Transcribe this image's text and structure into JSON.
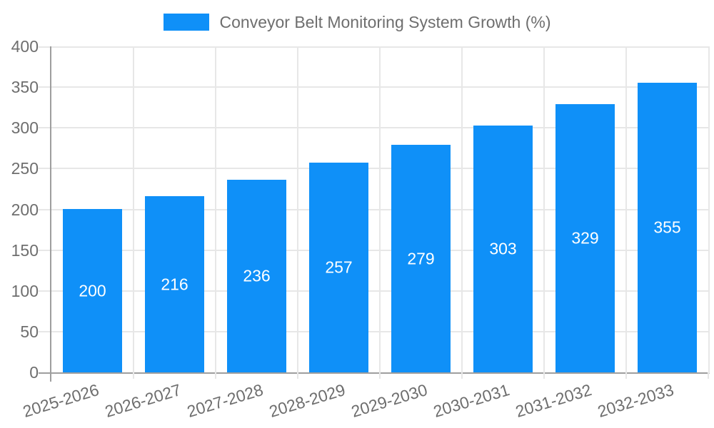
{
  "chart_data": {
    "type": "bar",
    "title": "Conveyor Belt Monitoring System Growth (%)",
    "categories": [
      "2025-2026",
      "2026-2027",
      "2027-2028",
      "2028-2029",
      "2029-2030",
      "2030-2031",
      "2031-2032",
      "2032-2033"
    ],
    "values": [
      200,
      216,
      236,
      257,
      279,
      303,
      329,
      355
    ],
    "xlabel": "",
    "ylabel": "",
    "ylim": [
      0,
      400
    ],
    "yticks": [
      0,
      50,
      100,
      150,
      200,
      250,
      300,
      350,
      400
    ],
    "grid": "on",
    "legend_position": "top-center",
    "bar_color": "#0f90f8",
    "value_label_color": "#ffffff",
    "tick_label_color": "#6e6e6e",
    "grid_color": "#e7e7e7",
    "axis_line_color": "#9e9e9e",
    "background_color": "#ffffff"
  }
}
